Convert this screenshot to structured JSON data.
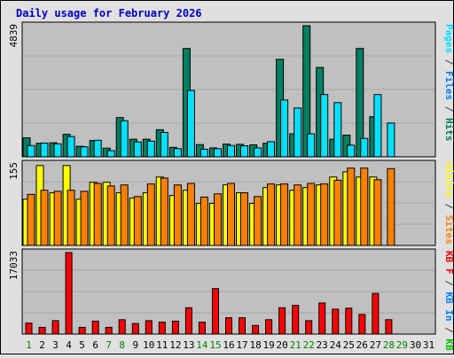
{
  "chart_data": {
    "title": "Daily usage for February 2026",
    "type": "bar",
    "x": {
      "days": [
        "1",
        "2",
        "3",
        "4",
        "5",
        "6",
        "7",
        "8",
        "9",
        "10",
        "11",
        "12",
        "13",
        "14",
        "15",
        "16",
        "17",
        "18",
        "19",
        "20",
        "21",
        "22",
        "23",
        "24",
        "25",
        "26",
        "27",
        "28",
        "29",
        "30",
        "31"
      ],
      "weekend_days": [
        "1",
        "7",
        "8",
        "14",
        "15",
        "21",
        "22",
        "28",
        "29"
      ]
    },
    "panels": [
      {
        "id": "pages-files-hits",
        "ymax_label": "4839",
        "ymax": 4839,
        "right_label_parts": [
          {
            "text": "Pages",
            "color": "#00e0ff"
          },
          {
            "text": " / ",
            "color": "#404040"
          },
          {
            "text": "Files",
            "color": "#0080ff"
          },
          {
            "text": " / ",
            "color": "#404040"
          },
          {
            "text": "Hits",
            "color": "#008060"
          }
        ],
        "series": [
          {
            "name": "Hits",
            "color": "#008060",
            "values": [
              700,
              500,
              520,
              830,
              390,
              600,
              320,
              1450,
              650,
              650,
              1000,
              350,
              4000,
              450,
              330,
              470,
              460,
              440,
              500,
              3600,
              850,
              4839,
              3300,
              650,
              800,
              4000,
              1480,
              0,
              0,
              0,
              0
            ]
          },
          {
            "name": "Files",
            "color": "#00e0ff",
            "values": [
              420,
              510,
              480,
              750,
              370,
              610,
              230,
              1330,
              550,
              580,
              900,
              300,
              2450,
              280,
              300,
              420,
              410,
              330,
              560,
              2100,
              1800,
              850,
              2300,
              2000,
              430,
              680,
              2300,
              1250,
              0,
              0,
              0
            ]
          }
        ]
      },
      {
        "id": "visits-sites",
        "ymax_label": "155",
        "ymax": 155,
        "right_label_parts": [
          {
            "text": "Visits",
            "color": "#ffff00"
          },
          {
            "text": " / ",
            "color": "#404040"
          },
          {
            "text": "Sites",
            "color": "#ff8000"
          }
        ],
        "series": [
          {
            "name": "Visits",
            "color": "#ffff00",
            "values": [
              88,
              152,
              100,
              152,
              88,
              120,
              120,
              100,
              90,
              100,
              130,
              95,
              105,
              80,
              80,
              115,
              100,
              80,
              110,
              115,
              105,
              110,
              115,
              130,
              140,
              130,
              130,
              0,
              0,
              0,
              0
            ]
          },
          {
            "name": "Sites",
            "color": "#ff8000",
            "values": [
              97,
              105,
              103,
              105,
              103,
              118,
              113,
              115,
              93,
              117,
              128,
              115,
              118,
              92,
              98,
              118,
              100,
              93,
              117,
              117,
              115,
              118,
              117,
              124,
              147,
              147,
              125,
              146,
              0,
              0,
              0
            ]
          }
        ]
      },
      {
        "id": "kb-in-out",
        "ymax_label": "17033",
        "ymax": 17033,
        "right_label_parts": [
          {
            "text": "KB F",
            "color": "#ff0000"
          },
          {
            "text": " / ",
            "color": "#404040"
          },
          {
            "text": "KB In",
            "color": "#0080ff"
          },
          {
            "text": " / ",
            "color": "#404040"
          },
          {
            "text": "KB Out",
            "color": "#00c000"
          }
        ],
        "series": [
          {
            "name": "KB F",
            "color": "#ff0000",
            "values": [
              2300,
              1400,
              2800,
              17033,
              1400,
              2700,
              1400,
              3000,
              2200,
              2800,
              2500,
              2700,
              5500,
              2500,
              9500,
              3400,
              3400,
              1800,
              3000,
              5500,
              6000,
              2800,
              6500,
              5200,
              5400,
              4100,
              8500,
              3000,
              0,
              0,
              0
            ]
          }
        ]
      }
    ]
  }
}
